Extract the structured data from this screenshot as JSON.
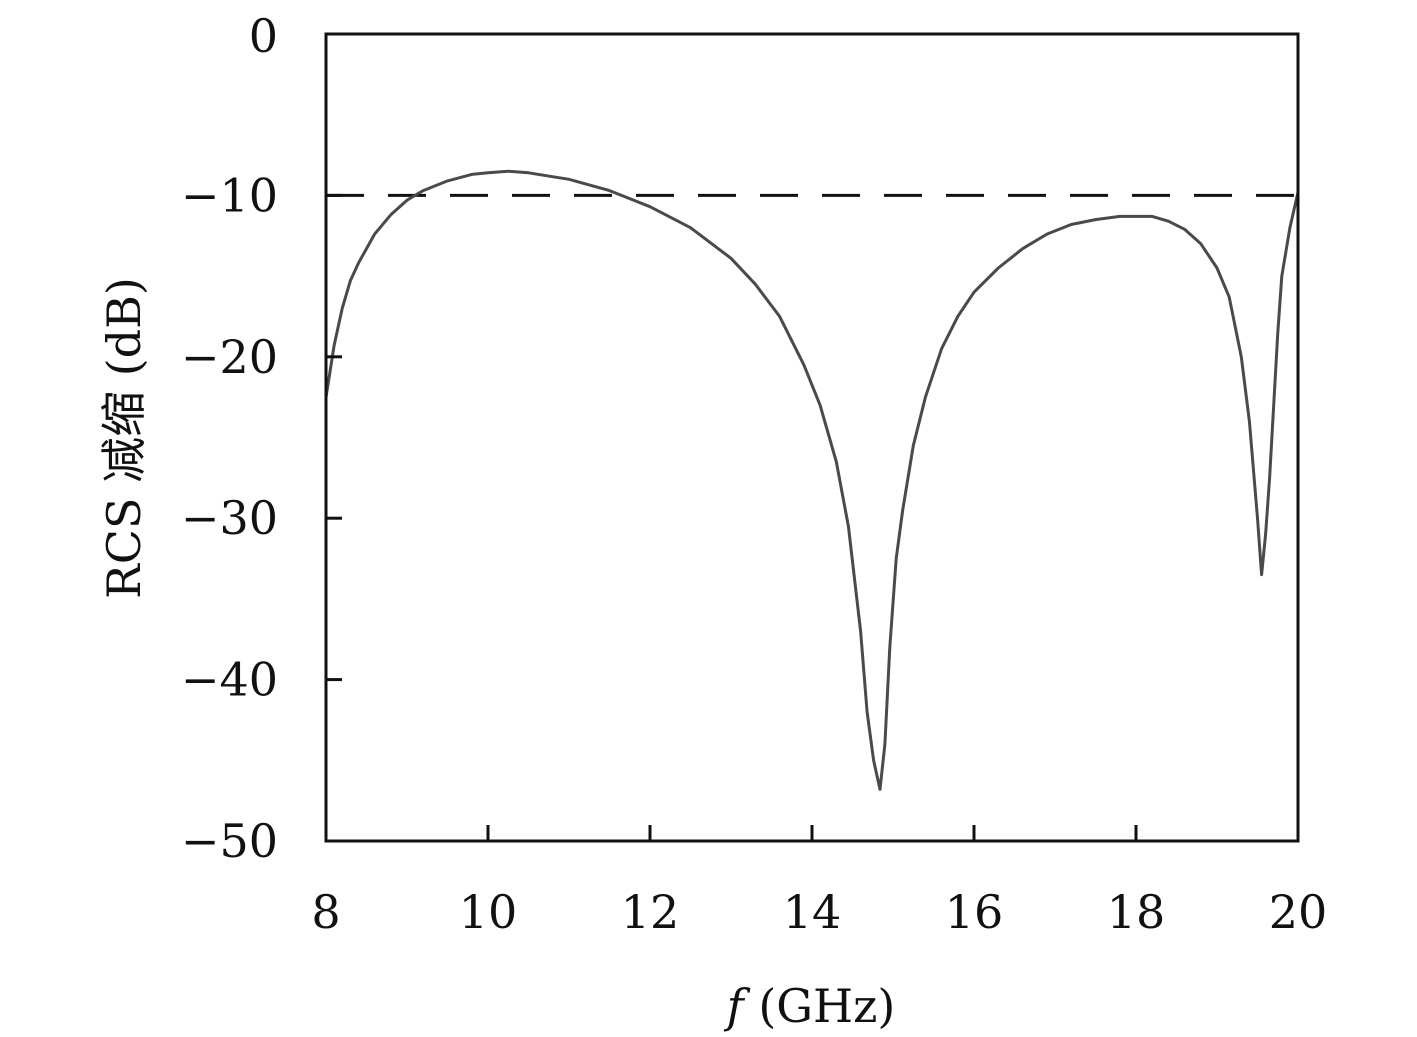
{
  "chart_data": {
    "type": "line",
    "title": "",
    "xlabel_var": "f",
    "xlabel_unit": " (GHz)",
    "ylabel": "RCS 减缩 (dB)",
    "xlim": [
      8,
      20
    ],
    "ylim": [
      -50,
      0
    ],
    "xticks": [
      8,
      10,
      12,
      14,
      16,
      18,
      20
    ],
    "yticks": [
      0,
      -10,
      -20,
      -30,
      -40,
      -50
    ],
    "xtick_labels": [
      "8",
      "10",
      "12",
      "14",
      "16",
      "18",
      "20"
    ],
    "ytick_labels": [
      "0",
      "−10",
      "−20",
      "−30",
      "−40",
      "−50"
    ],
    "grid": false,
    "reference_line": {
      "y": -10,
      "style": "dashed"
    },
    "series": [
      {
        "line_color": "#4a4a4a",
        "x": [
          8.0,
          8.1,
          8.2,
          8.3,
          8.4,
          8.6,
          8.8,
          9.0,
          9.2,
          9.5,
          9.8,
          10.0,
          10.25,
          10.5,
          11.0,
          11.5,
          12.0,
          12.5,
          13.0,
          13.3,
          13.6,
          13.9,
          14.1,
          14.3,
          14.45,
          14.6,
          14.68,
          14.76,
          14.84,
          14.9,
          14.96,
          15.04,
          15.12,
          15.25,
          15.4,
          15.6,
          15.8,
          16.0,
          16.3,
          16.6,
          16.9,
          17.2,
          17.5,
          17.8,
          18.0,
          18.2,
          18.4,
          18.6,
          18.8,
          19.0,
          19.15,
          19.3,
          19.4,
          19.5,
          19.55,
          19.6,
          19.65,
          19.7,
          19.75,
          19.8,
          19.9,
          20.0
        ],
        "y": [
          -22.5,
          -19.3,
          -17.0,
          -15.3,
          -14.2,
          -12.4,
          -11.2,
          -10.3,
          -9.7,
          -9.1,
          -8.7,
          -8.6,
          -8.5,
          -8.6,
          -9.0,
          -9.7,
          -10.7,
          -12.0,
          -13.9,
          -15.5,
          -17.5,
          -20.5,
          -23.0,
          -26.5,
          -30.5,
          -37.0,
          -42.0,
          -45.0,
          -46.8,
          -44.0,
          -38.0,
          -32.5,
          -29.5,
          -25.5,
          -22.5,
          -19.5,
          -17.5,
          -16.0,
          -14.5,
          -13.3,
          -12.4,
          -11.8,
          -11.5,
          -11.3,
          -11.3,
          -11.3,
          -11.6,
          -12.1,
          -13.0,
          -14.5,
          -16.3,
          -20.0,
          -24.0,
          -30.0,
          -33.5,
          -31.0,
          -27.5,
          -23.0,
          -18.5,
          -15.0,
          -12.0,
          -9.8
        ]
      }
    ]
  }
}
